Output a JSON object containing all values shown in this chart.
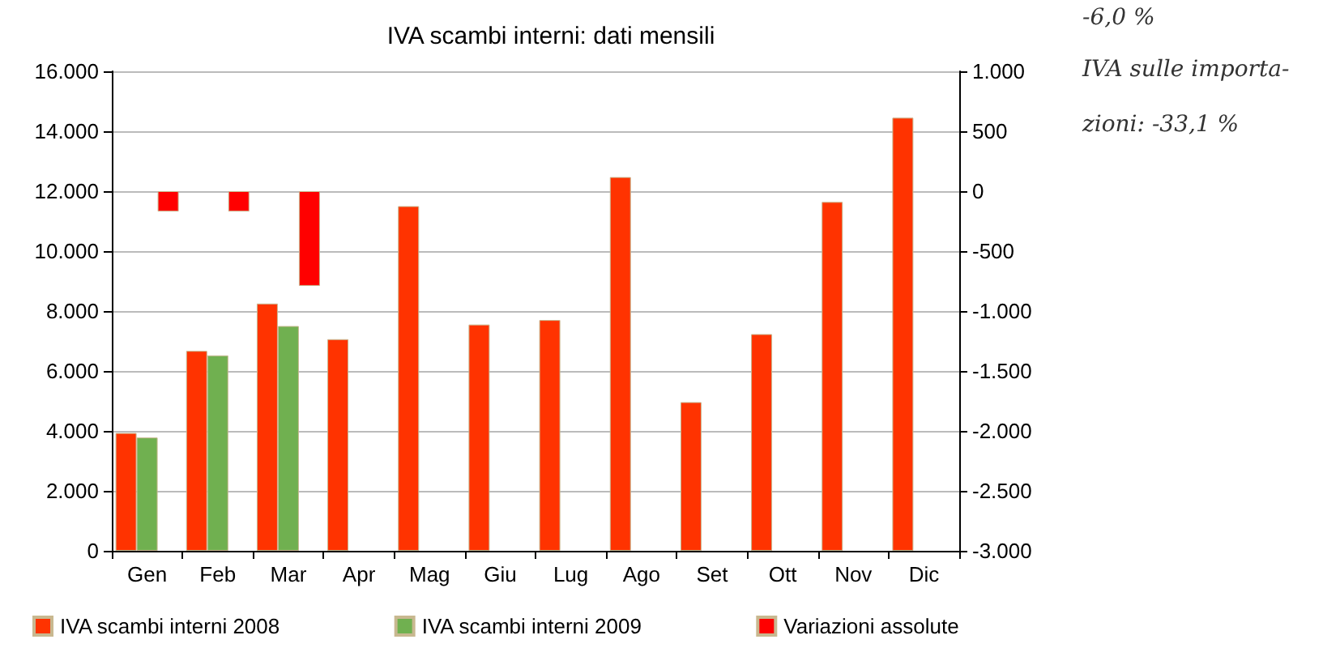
{
  "chart_data": {
    "type": "bar",
    "title": "IVA scambi interni: dati mensili",
    "categories": [
      "Gen",
      "Feb",
      "Mar",
      "Apr",
      "Mag",
      "Giu",
      "Lug",
      "Ago",
      "Set",
      "Ott",
      "Nov",
      "Dic"
    ],
    "series": [
      {
        "name": "IVA scambi interni 2008",
        "color": "#ff3300",
        "values": [
          3930,
          6670,
          8250,
          7060,
          11500,
          7550,
          7700,
          12470,
          4960,
          7230,
          11640,
          14450
        ]
      },
      {
        "name": "IVA scambi interni 2009",
        "color": "#70b050",
        "values": [
          3780,
          6520,
          7500,
          null,
          null,
          null,
          null,
          null,
          null,
          null,
          null,
          null
        ]
      },
      {
        "name": "Variazioni assolute",
        "color": "#ff0000",
        "axis": "y2",
        "values": [
          -170,
          -170,
          -790,
          null,
          null,
          null,
          null,
          null,
          null,
          null,
          null,
          null
        ]
      }
    ],
    "ylim": [
      0,
      16000
    ],
    "yticks": [
      {
        "value": 0,
        "label": "0"
      },
      {
        "value": 2000,
        "label": "2.000"
      },
      {
        "value": 4000,
        "label": "4.000"
      },
      {
        "value": 6000,
        "label": "6.000"
      },
      {
        "value": 8000,
        "label": "8.000"
      },
      {
        "value": 10000,
        "label": "10.000"
      },
      {
        "value": 12000,
        "label": "12.000"
      },
      {
        "value": 14000,
        "label": "14.000"
      },
      {
        "value": 16000,
        "label": "16.000"
      }
    ],
    "y2lim": [
      -3000,
      1000
    ],
    "y2ticks": [
      {
        "value": -3000,
        "label": "-3.000"
      },
      {
        "value": -2500,
        "label": "-2.500"
      },
      {
        "value": -2000,
        "label": "-2.000"
      },
      {
        "value": -1500,
        "label": "-1.500"
      },
      {
        "value": -1000,
        "label": "-1.000"
      },
      {
        "value": -500,
        "label": "-500"
      },
      {
        "value": 0,
        "label": "0"
      },
      {
        "value": 500,
        "label": "500"
      },
      {
        "value": 1000,
        "label": "1.000"
      }
    ],
    "grid": "y",
    "legend": "bottom",
    "annotations": [
      "-6,0 %",
      "IVA sulle importa-\nzioni: -33,1 %"
    ]
  }
}
